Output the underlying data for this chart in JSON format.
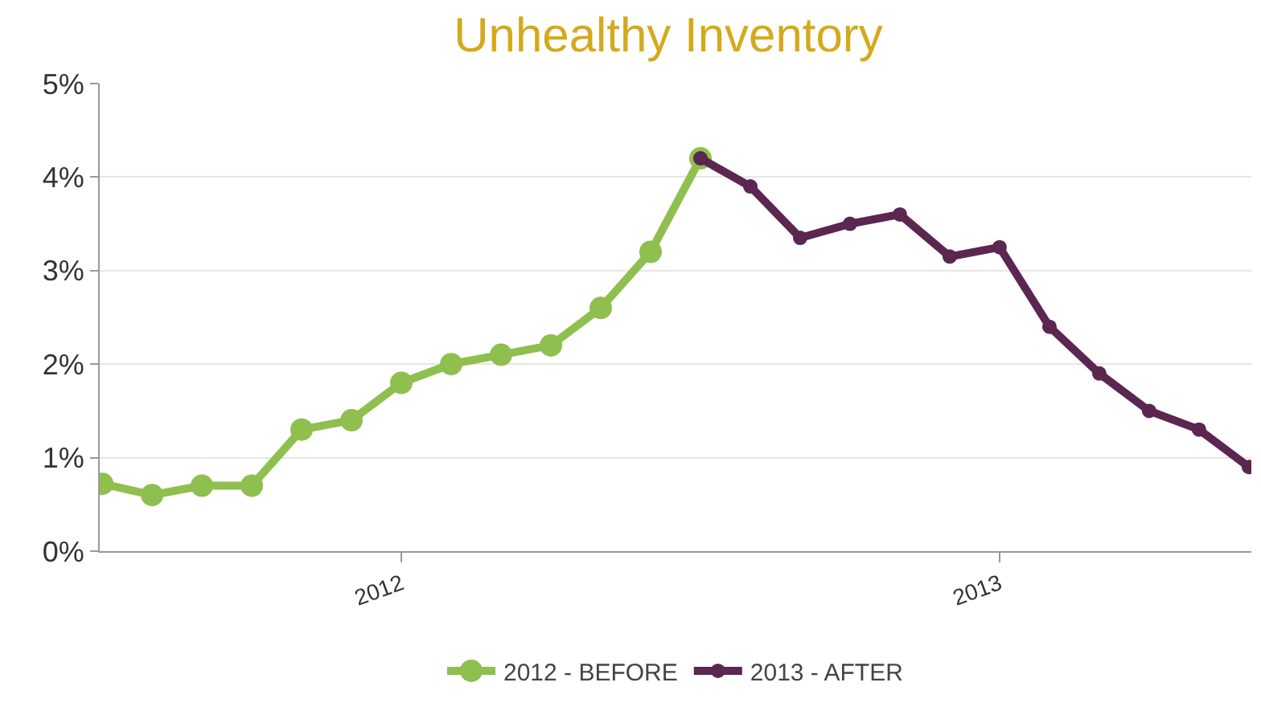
{
  "chart_data": {
    "type": "line",
    "title": "Unhealthy Inventory",
    "categories": [
      null,
      null,
      null,
      null,
      null,
      null,
      "2012",
      null,
      null,
      null,
      null,
      null,
      null,
      null,
      null,
      null,
      null,
      null,
      "2013",
      null,
      null,
      null,
      null,
      null
    ],
    "series": [
      {
        "name": "2012 - BEFORE",
        "color": "#8fbf4f",
        "values": [
          0.72,
          0.6,
          0.7,
          0.7,
          1.3,
          1.4,
          1.8,
          2.0,
          2.1,
          2.2,
          2.6,
          3.2,
          4.2,
          null,
          null,
          null,
          null,
          null,
          null,
          null,
          null,
          null,
          null,
          null
        ]
      },
      {
        "name": "2013 - AFTER",
        "color": "#5b2650",
        "values": [
          null,
          null,
          null,
          null,
          null,
          null,
          null,
          null,
          null,
          null,
          null,
          null,
          4.2,
          3.9,
          3.35,
          3.5,
          3.6,
          3.15,
          3.25,
          2.4,
          1.9,
          1.5,
          1.3,
          0.9
        ]
      }
    ],
    "ylim": [
      0,
      5
    ],
    "yticks": [
      {
        "value": 0,
        "label": "0%"
      },
      {
        "value": 1,
        "label": "1%"
      },
      {
        "value": 2,
        "label": "2%"
      },
      {
        "value": 3,
        "label": "3%"
      },
      {
        "value": 4,
        "label": "4%"
      },
      {
        "value": 5,
        "label": "5%"
      }
    ],
    "grid": "y",
    "legend": "bottom",
    "marker": "circle",
    "line_style": "solid"
  }
}
